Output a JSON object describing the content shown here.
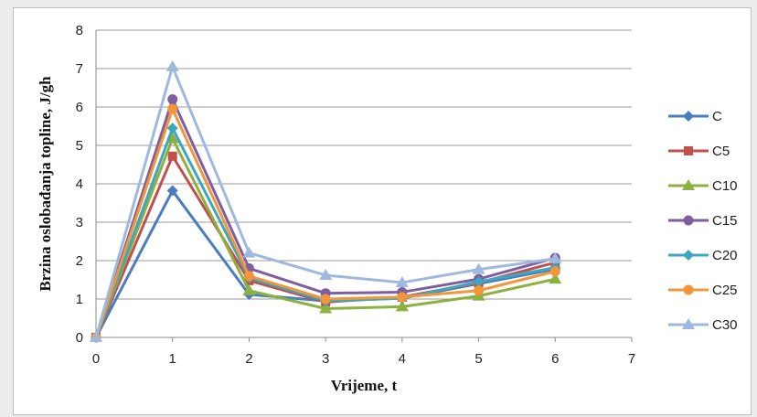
{
  "chart_data": {
    "type": "line",
    "xlabel": "Vrijeme, t",
    "ylabel": "Brzina oslobađanja topline, J/gh",
    "xlim": [
      0,
      7
    ],
    "ylim": [
      0,
      8
    ],
    "xticks": [
      0,
      1,
      2,
      3,
      4,
      5,
      6,
      7
    ],
    "yticks": [
      0,
      1,
      2,
      3,
      4,
      5,
      6,
      7,
      8
    ],
    "grid": "horizontal",
    "legend_position": "right",
    "x": [
      0,
      1,
      2,
      3,
      4,
      5,
      6
    ],
    "series": [
      {
        "name": "C",
        "color": "#4a7dbf",
        "marker": "diamond",
        "values": [
          0.0,
          3.82,
          1.12,
          0.95,
          1.02,
          1.4,
          1.78
        ]
      },
      {
        "name": "C5",
        "color": "#c0504d",
        "marker": "square",
        "values": [
          0.0,
          4.72,
          1.48,
          0.92,
          1.05,
          1.42,
          1.95
        ]
      },
      {
        "name": "C10",
        "color": "#8db13f",
        "marker": "triangle",
        "values": [
          0.0,
          5.18,
          1.22,
          0.75,
          0.8,
          1.08,
          1.52
        ]
      },
      {
        "name": "C15",
        "color": "#7f5ea0",
        "marker": "circle",
        "values": [
          0.0,
          6.2,
          1.8,
          1.15,
          1.18,
          1.52,
          2.07
        ]
      },
      {
        "name": "C20",
        "color": "#3fa6bf",
        "marker": "diamond",
        "values": [
          0.0,
          5.45,
          1.55,
          0.95,
          1.02,
          1.45,
          1.82
        ]
      },
      {
        "name": "C25",
        "color": "#f39539",
        "marker": "circle",
        "values": [
          0.0,
          5.95,
          1.6,
          1.0,
          1.05,
          1.22,
          1.72
        ]
      },
      {
        "name": "C30",
        "color": "#9fb8de",
        "marker": "triangle",
        "values": [
          0.0,
          7.05,
          2.2,
          1.62,
          1.43,
          1.77,
          2.05
        ]
      }
    ]
  }
}
